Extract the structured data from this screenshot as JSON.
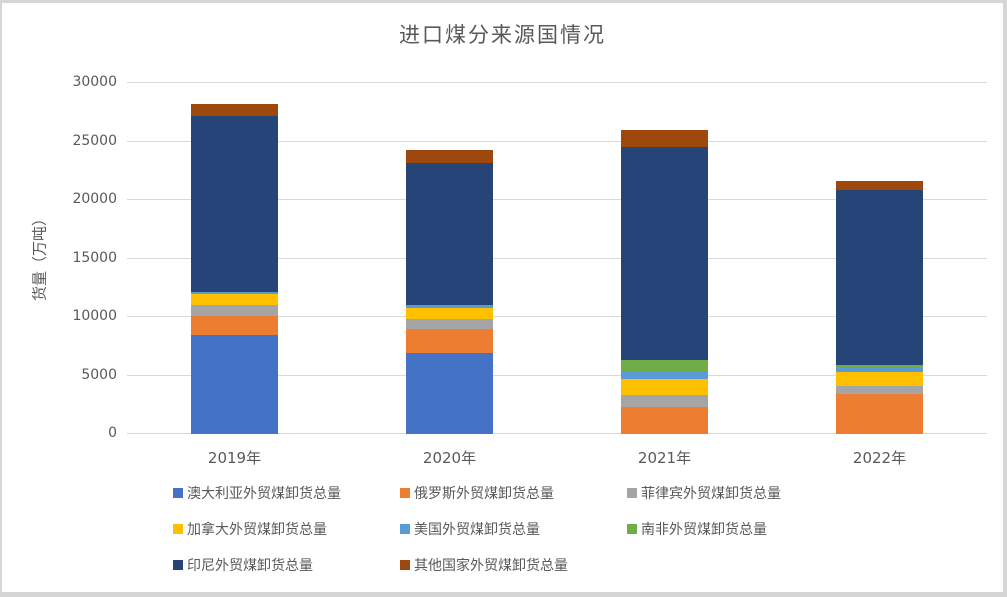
{
  "chart_data": {
    "type": "bar",
    "stacked": true,
    "title": "进口煤分来源国情况",
    "ylabel": "货量（万吨）",
    "xlabel": "",
    "categories": [
      "2019年",
      "2020年",
      "2021年",
      "2022年"
    ],
    "series": [
      {
        "name": "澳大利亚外贸煤卸货总量",
        "color": "#4472C4",
        "values": [
          8500,
          6950,
          0,
          0
        ]
      },
      {
        "name": "俄罗斯外贸煤卸货总量",
        "color": "#ED7D31",
        "values": [
          1600,
          2000,
          2300,
          3400
        ]
      },
      {
        "name": "菲律宾外贸煤卸货总量",
        "color": "#A5A5A5",
        "values": [
          950,
          850,
          1000,
          700
        ]
      },
      {
        "name": "加拿大外贸煤卸货总量",
        "color": "#FFC000",
        "values": [
          950,
          950,
          1400,
          1200
        ]
      },
      {
        "name": "美国外贸煤卸货总量",
        "color": "#5B9BD5",
        "values": [
          150,
          250,
          650,
          400
        ]
      },
      {
        "name": "南非外贸煤卸货总量",
        "color": "#70AD47",
        "values": [
          0,
          0,
          950,
          200
        ]
      },
      {
        "name": "印尼外贸煤卸货总量",
        "color": "#264478",
        "values": [
          15000,
          12150,
          18200,
          15000
        ]
      },
      {
        "name": "其他国家外贸煤卸货总量",
        "color": "#9E480E",
        "values": [
          1050,
          1100,
          1450,
          700
        ]
      }
    ],
    "stack_totals": [
      28200,
      24250,
      25950,
      21600
    ],
    "ylim": [
      0,
      30000
    ],
    "ytick_step": 5000,
    "yticks": [
      "0",
      "5000",
      "10000",
      "15000",
      "20000",
      "25000",
      "30000"
    ],
    "grid": true,
    "legend_position": "bottom",
    "legend_columns": 3
  },
  "colors": {
    "title_text": "#595959",
    "axis_text": "#595959",
    "gridline": "#D9D9D9",
    "panel_border": "#D6D6D6",
    "background": "#FFFFFF"
  }
}
